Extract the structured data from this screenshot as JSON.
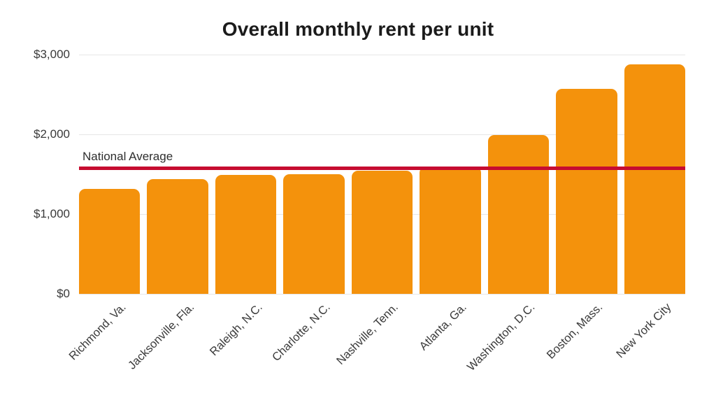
{
  "chart_data": {
    "type": "bar",
    "title": "Overall monthly rent per unit",
    "categories": [
      "Richmond, Va.",
      "Jacksonville, Fla.",
      "Raleigh, N.C.",
      "Charlotte, N.C.",
      "Nashville, Tenn.",
      "Atlanta, Ga.",
      "Washington, D.C.",
      "Boston, Mass.",
      "New York City"
    ],
    "values": [
      1320,
      1440,
      1490,
      1500,
      1540,
      1600,
      1990,
      2570,
      2880
    ],
    "xlabel": "",
    "ylabel": "",
    "ylim": [
      0,
      3000
    ],
    "y_ticks": [
      {
        "value": 0,
        "label": "$0"
      },
      {
        "value": 1000,
        "label": "$1,000"
      },
      {
        "value": 2000,
        "label": "$2,000"
      },
      {
        "value": 3000,
        "label": "$3,000"
      }
    ],
    "grid": true,
    "legend_position": "none",
    "reference_line": {
      "label": "National Average",
      "value": 1575,
      "color": "#C60C30"
    },
    "colors": {
      "bar": "#F4920C",
      "title": "#1B1B1B",
      "axis_labels": "#3A3A3A",
      "gridline": "#E7E7E7",
      "background": "#FFFFFF"
    }
  }
}
